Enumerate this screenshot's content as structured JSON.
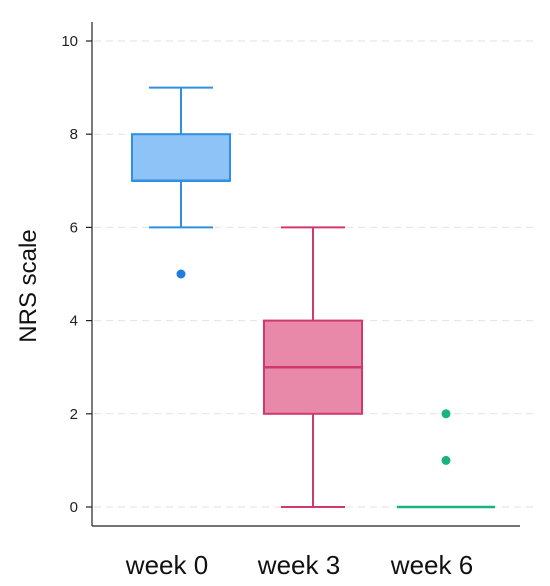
{
  "chart_data": {
    "type": "box",
    "title": "",
    "xlabel": "",
    "ylabel": "NRS scale",
    "ylim": [
      0,
      10
    ],
    "yticks": [
      0,
      2,
      4,
      6,
      8,
      10
    ],
    "ytick_labels": [
      "0",
      "2",
      "4",
      "6",
      "8",
      "10"
    ],
    "grid": true,
    "categories": [
      "week 0",
      "week 3",
      "week 6"
    ],
    "boxes": [
      {
        "category": "week 0",
        "whisker_low": 6,
        "q1": 7,
        "median": 7,
        "q3": 8,
        "whisker_high": 9,
        "outliers": [
          5
        ],
        "stroke": "#2f8fe0",
        "fill": "#8ec3f8",
        "outlier_color": "#1e7de0"
      },
      {
        "category": "week 3",
        "whisker_low": 0,
        "q1": 2,
        "median": 3,
        "q3": 4,
        "whisker_high": 6,
        "outliers": [],
        "stroke": "#d0386f",
        "fill": "#e889a9",
        "outlier_color": "#d0386f"
      },
      {
        "category": "week 6",
        "whisker_low": 0,
        "q1": 0,
        "median": 0,
        "q3": 0,
        "whisker_high": 0,
        "outliers": [
          1,
          2
        ],
        "stroke": "#19b37e",
        "fill": "#19b37e",
        "outlier_color": "#19b37e"
      }
    ]
  }
}
